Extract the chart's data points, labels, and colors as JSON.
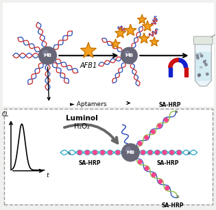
{
  "bg_color": "#f0f0ee",
  "top_bg": "#ffffff",
  "bot_bg": "#ffffff",
  "mb_color": "#666677",
  "mb_text_color": "#ffffff",
  "arrow_color": "#222222",
  "star_color": "#f5a020",
  "star_outline": "#c07000",
  "dna_blue": "#3355bb",
  "dna_red": "#cc3333",
  "dna_cyan": "#33aacc",
  "dna_green": "#88bb44",
  "dna_yellow": "#ddcc44",
  "dot_pink": "#ff4488",
  "magnet_red": "#cc1111",
  "magnet_blue": "#1122cc",
  "gray_arrow": "#777777",
  "label_afb1": "AFB1",
  "label_aptamers": "Aptamers",
  "label_luminol": "Luminol",
  "label_h2o2": "H₂O₂",
  "label_sahrp": "SA-HRP",
  "label_mb": "MB",
  "label_cl": "CL",
  "label_t": "t",
  "box_color": "#999999",
  "tube_body": "#e8f4f8",
  "tube_liquid": "#cce8f0",
  "tube_cap": "#e0e8e0"
}
